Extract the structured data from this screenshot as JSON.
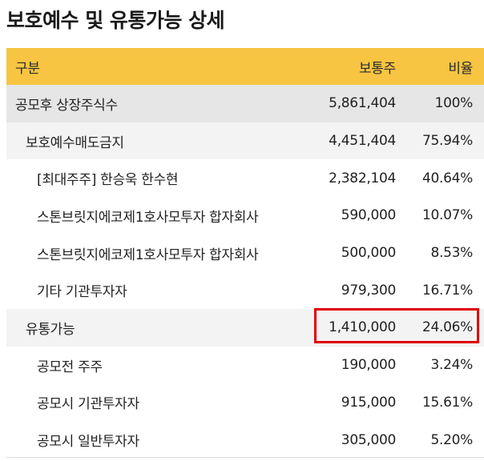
{
  "title": "보호예수 및 유통가능 상세",
  "table": {
    "headers": {
      "label": "구분",
      "shares": "보통주",
      "ratio": "비율"
    },
    "rows": [
      {
        "label": "공모후 상장주식수",
        "shares": "5,861,404",
        "ratio": "100%"
      },
      {
        "label": "보호예수매도금지",
        "shares": "4,451,404",
        "ratio": "75.94%"
      },
      {
        "label": "[최대주주] 한승욱 한수현",
        "shares": "2,382,104",
        "ratio": "40.64%"
      },
      {
        "label": "스톤브릿지에코제1호사모투자 합자회사",
        "shares": "590,000",
        "ratio": "10.07%"
      },
      {
        "label": "스톤브릿지에코제1호사모투자 합자회사",
        "shares": "500,000",
        "ratio": "8.53%"
      },
      {
        "label": "기타 기관투자자",
        "shares": "979,300",
        "ratio": "16.71%"
      },
      {
        "label": "유통가능",
        "shares": "1,410,000",
        "ratio": "24.06%"
      },
      {
        "label": "공모전 주주",
        "shares": "190,000",
        "ratio": "3.24%"
      },
      {
        "label": "공모시 기관투자자",
        "shares": "915,000",
        "ratio": "15.61%"
      },
      {
        "label": "공모시 일반투자자",
        "shares": "305,000",
        "ratio": "5.20%"
      }
    ]
  },
  "colors": {
    "header_bg": "#f7c542",
    "highlight_border": "#e00000"
  }
}
